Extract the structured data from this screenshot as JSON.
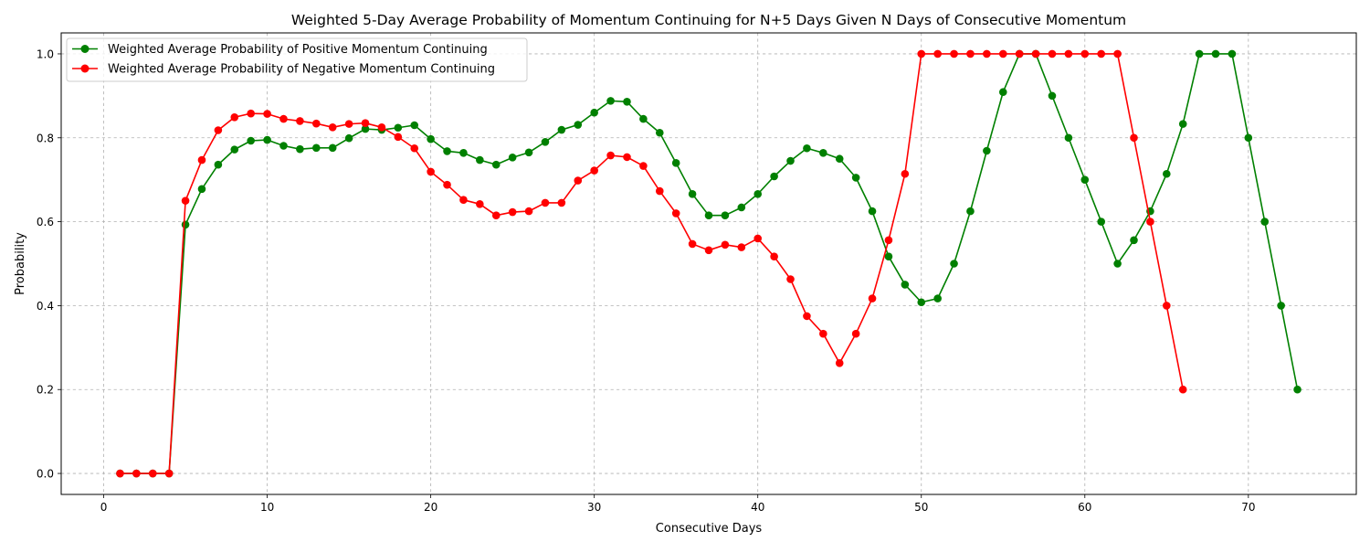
{
  "chart_data": {
    "type": "line",
    "title": "Weighted 5-Day Average Probability of Momentum Continuing for N+5 Days Given N Days of Consecutive Momentum",
    "xlabel": "Consecutive Days",
    "ylabel": "Probability",
    "xlim": [
      -2.6,
      76.6
    ],
    "ylim": [
      -0.05,
      1.05
    ],
    "x_ticks": [
      0,
      10,
      20,
      30,
      40,
      50,
      60,
      70
    ],
    "y_ticks": [
      0.0,
      0.2,
      0.4,
      0.6,
      0.8,
      1.0
    ],
    "x_tick_labels": [
      "0",
      "10",
      "20",
      "30",
      "40",
      "50",
      "60",
      "70"
    ],
    "y_tick_labels": [
      "0.0",
      "0.2",
      "0.4",
      "0.6",
      "0.8",
      "1.0"
    ],
    "grid": true,
    "legend_position": "upper-left",
    "series": [
      {
        "name": "Weighted Average Probability of Positive Momentum Continuing",
        "color": "#008000",
        "x": [
          1,
          2,
          3,
          4,
          5,
          6,
          7,
          8,
          9,
          10,
          11,
          12,
          13,
          14,
          15,
          16,
          17,
          18,
          19,
          20,
          21,
          22,
          23,
          24,
          25,
          26,
          27,
          28,
          29,
          30,
          31,
          32,
          33,
          34,
          35,
          36,
          37,
          38,
          39,
          40,
          41,
          42,
          43,
          44,
          45,
          46,
          47,
          48,
          49,
          50,
          51,
          52,
          53,
          54,
          55,
          56,
          57,
          58,
          59,
          60,
          61,
          62,
          63,
          64,
          65,
          66,
          67,
          68,
          69,
          70,
          71,
          72,
          73
        ],
        "values": [
          0,
          0,
          0,
          0,
          0.593,
          0.678,
          0.736,
          0.772,
          0.793,
          0.795,
          0.781,
          0.773,
          0.776,
          0.776,
          0.799,
          0.821,
          0.819,
          0.824,
          0.83,
          0.797,
          0.768,
          0.764,
          0.747,
          0.736,
          0.753,
          0.765,
          0.79,
          0.819,
          0.831,
          0.86,
          0.888,
          0.886,
          0.845,
          0.812,
          0.74,
          0.666,
          0.615,
          0.615,
          0.634,
          0.666,
          0.708,
          0.745,
          0.775,
          0.764,
          0.75,
          0.705,
          0.625,
          0.517,
          0.45,
          0.408,
          0.417,
          0.5,
          0.625,
          0.769,
          0.909,
          1.0,
          1.0,
          0.9,
          0.8,
          0.7,
          0.6,
          0.5,
          0.556,
          0.625,
          0.714,
          0.833,
          1.0,
          1.0,
          1.0,
          0.8,
          0.6,
          0.4,
          0.2
        ]
      },
      {
        "name": "Weighted Average Probability of Negative Momentum Continuing",
        "color": "#ff0000",
        "x": [
          1,
          2,
          3,
          4,
          5,
          6,
          7,
          8,
          9,
          10,
          11,
          12,
          13,
          14,
          15,
          16,
          17,
          18,
          19,
          20,
          21,
          22,
          23,
          24,
          25,
          26,
          27,
          28,
          29,
          30,
          31,
          32,
          33,
          34,
          35,
          36,
          37,
          38,
          39,
          40,
          41,
          42,
          43,
          44,
          45,
          46,
          47,
          48,
          49,
          50,
          51,
          52,
          53,
          54,
          55,
          56,
          57,
          58,
          59,
          60,
          61,
          62,
          63,
          64,
          65,
          66
        ],
        "values": [
          0,
          0,
          0,
          0,
          0.65,
          0.747,
          0.818,
          0.849,
          0.858,
          0.857,
          0.845,
          0.84,
          0.834,
          0.825,
          0.833,
          0.835,
          0.825,
          0.802,
          0.775,
          0.719,
          0.688,
          0.652,
          0.642,
          0.615,
          0.623,
          0.625,
          0.645,
          0.645,
          0.698,
          0.722,
          0.758,
          0.754,
          0.733,
          0.673,
          0.62,
          0.547,
          0.532,
          0.545,
          0.539,
          0.56,
          0.517,
          0.463,
          0.375,
          0.333,
          0.263,
          0.333,
          0.417,
          0.556,
          0.714,
          1.0,
          1.0,
          1.0,
          1.0,
          1.0,
          1.0,
          1.0,
          1.0,
          1.0,
          1.0,
          1.0,
          1.0,
          1.0,
          0.8,
          0.6,
          0.4,
          0.2
        ]
      }
    ]
  }
}
